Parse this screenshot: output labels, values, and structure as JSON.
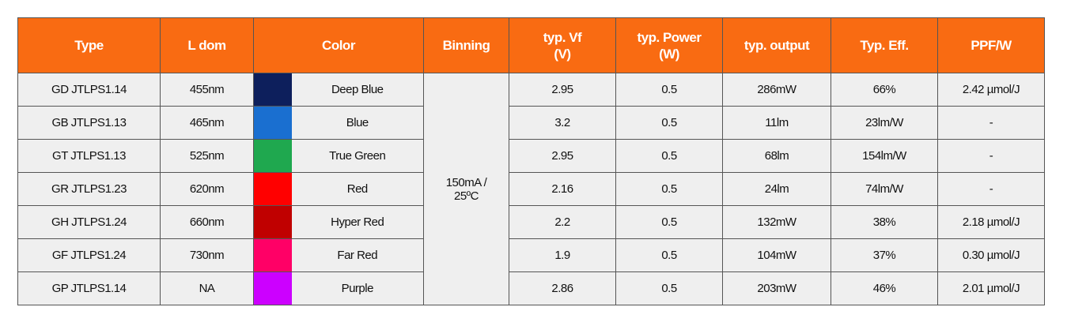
{
  "table": {
    "header": [
      "Type",
      "L dom",
      "Color",
      "Binning",
      "typ. Vf\n(V)",
      "typ. Power\n(W)",
      "typ. output",
      "Typ. Eff.",
      "PPF/W"
    ],
    "binning": "150mA /\n25ºC",
    "rows": [
      {
        "type": "GD JTLPS1.14",
        "l_dom": "455nm",
        "swatch": "#0d1f5c",
        "color": "Deep Blue",
        "vf": "2.95",
        "power": "0.5",
        "output": "286mW",
        "eff": "66%",
        "ppf": "2.42 µmol/J"
      },
      {
        "type": "GB JTLPS1.13",
        "l_dom": "465nm",
        "swatch": "#1a6fd0",
        "color": "Blue",
        "vf": "3.2",
        "power": "0.5",
        "output": "11lm",
        "eff": "23lm/W",
        "ppf": "-"
      },
      {
        "type": "GT JTLPS1.13",
        "l_dom": "525nm",
        "swatch": "#1fa84f",
        "color": "True Green",
        "vf": "2.95",
        "power": "0.5",
        "output": "68lm",
        "eff": "154lm/W",
        "ppf": "-"
      },
      {
        "type": "GR JTLPS1.23",
        "l_dom": "620nm",
        "swatch": "#ff0000",
        "color": "Red",
        "vf": "2.16",
        "power": "0.5",
        "output": "24lm",
        "eff": "74lm/W",
        "ppf": "-"
      },
      {
        "type": "GH JTLPS1.24",
        "l_dom": "660nm",
        "swatch": "#c00000",
        "color": "Hyper Red",
        "vf": "2.2",
        "power": "0.5",
        "output": "132mW",
        "eff": "38%",
        "ppf": "2.18 µmol/J"
      },
      {
        "type": "GF JTLPS1.24",
        "l_dom": "730nm",
        "swatch": "#ff0066",
        "color": "Far Red",
        "vf": "1.9",
        "power": "0.5",
        "output": "104mW",
        "eff": "37%",
        "ppf": "0.30 µmol/J"
      },
      {
        "type": "GP JTLPS1.14",
        "l_dom": "NA",
        "swatch": "#cc00ff",
        "color": "Purple",
        "vf": "2.86",
        "power": "0.5",
        "output": "203mW",
        "eff": "46%",
        "ppf": "2.01 µmol/J"
      }
    ]
  }
}
